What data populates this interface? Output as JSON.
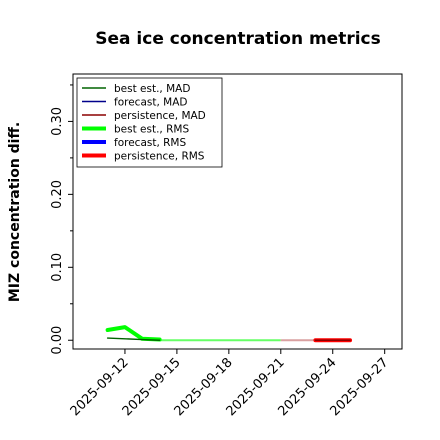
{
  "chart_data": {
    "type": "line",
    "title": "Sea ice concentration metrics",
    "xlabel": "",
    "ylabel": "MIZ concentration diff.",
    "x_ticks": [
      "2025-09-12",
      "2025-09-15",
      "2025-09-18",
      "2025-09-21",
      "2025-09-24",
      "2025-09-27"
    ],
    "highlight_tick": "2025-09-18",
    "highlight_color": "#228b22",
    "xlim": [
      "2025-09-09",
      "2025-09-28"
    ],
    "y_ticks": [
      0.0,
      0.1,
      0.2,
      0.3
    ],
    "y_tick_labels": [
      "0.00",
      "0.10",
      "0.20",
      "0.30"
    ],
    "ylim": [
      -0.012,
      0.365
    ],
    "grid": false,
    "legend_position": "top-left",
    "series": [
      {
        "name": "best est., MAD",
        "color": "#006400",
        "style": "thin",
        "points": [
          [
            "2025-09-11",
            0.003
          ],
          [
            "2025-09-12",
            0.002
          ],
          [
            "2025-09-13",
            0.001
          ],
          [
            "2025-09-14",
            0.0
          ]
        ]
      },
      {
        "name": "forecast,  MAD",
        "color": "#00008b",
        "style": "thin",
        "points": []
      },
      {
        "name": "persistence, MAD",
        "color": "#8b0000",
        "style": "thin",
        "points": [
          [
            "2025-09-23",
            0.0
          ],
          [
            "2025-09-24",
            0.0
          ],
          [
            "2025-09-25",
            0.0
          ]
        ]
      },
      {
        "name": "best est., RMS",
        "color": "#00ff00",
        "style": "thick",
        "points": [
          [
            "2025-09-11",
            0.014
          ],
          [
            "2025-09-12",
            0.018
          ],
          [
            "2025-09-13",
            0.002
          ],
          [
            "2025-09-14",
            0.001
          ]
        ]
      },
      {
        "name": "forecast,  RMS",
        "color": "#0000ff",
        "style": "thick",
        "points": []
      },
      {
        "name": "persistence, RMS",
        "color": "#ff0000",
        "style": "thick",
        "points": [
          [
            "2025-09-23",
            0.0
          ],
          [
            "2025-09-24",
            0.0
          ],
          [
            "2025-09-25",
            0.0
          ]
        ]
      }
    ],
    "reference_lines": [
      {
        "color": "#66ff66",
        "y": 0.0,
        "from": "2025-09-14",
        "to": "2025-09-21"
      },
      {
        "color": "#d9a0a0",
        "y": 0.0,
        "from": "2025-09-21",
        "to": "2025-09-23"
      }
    ]
  }
}
